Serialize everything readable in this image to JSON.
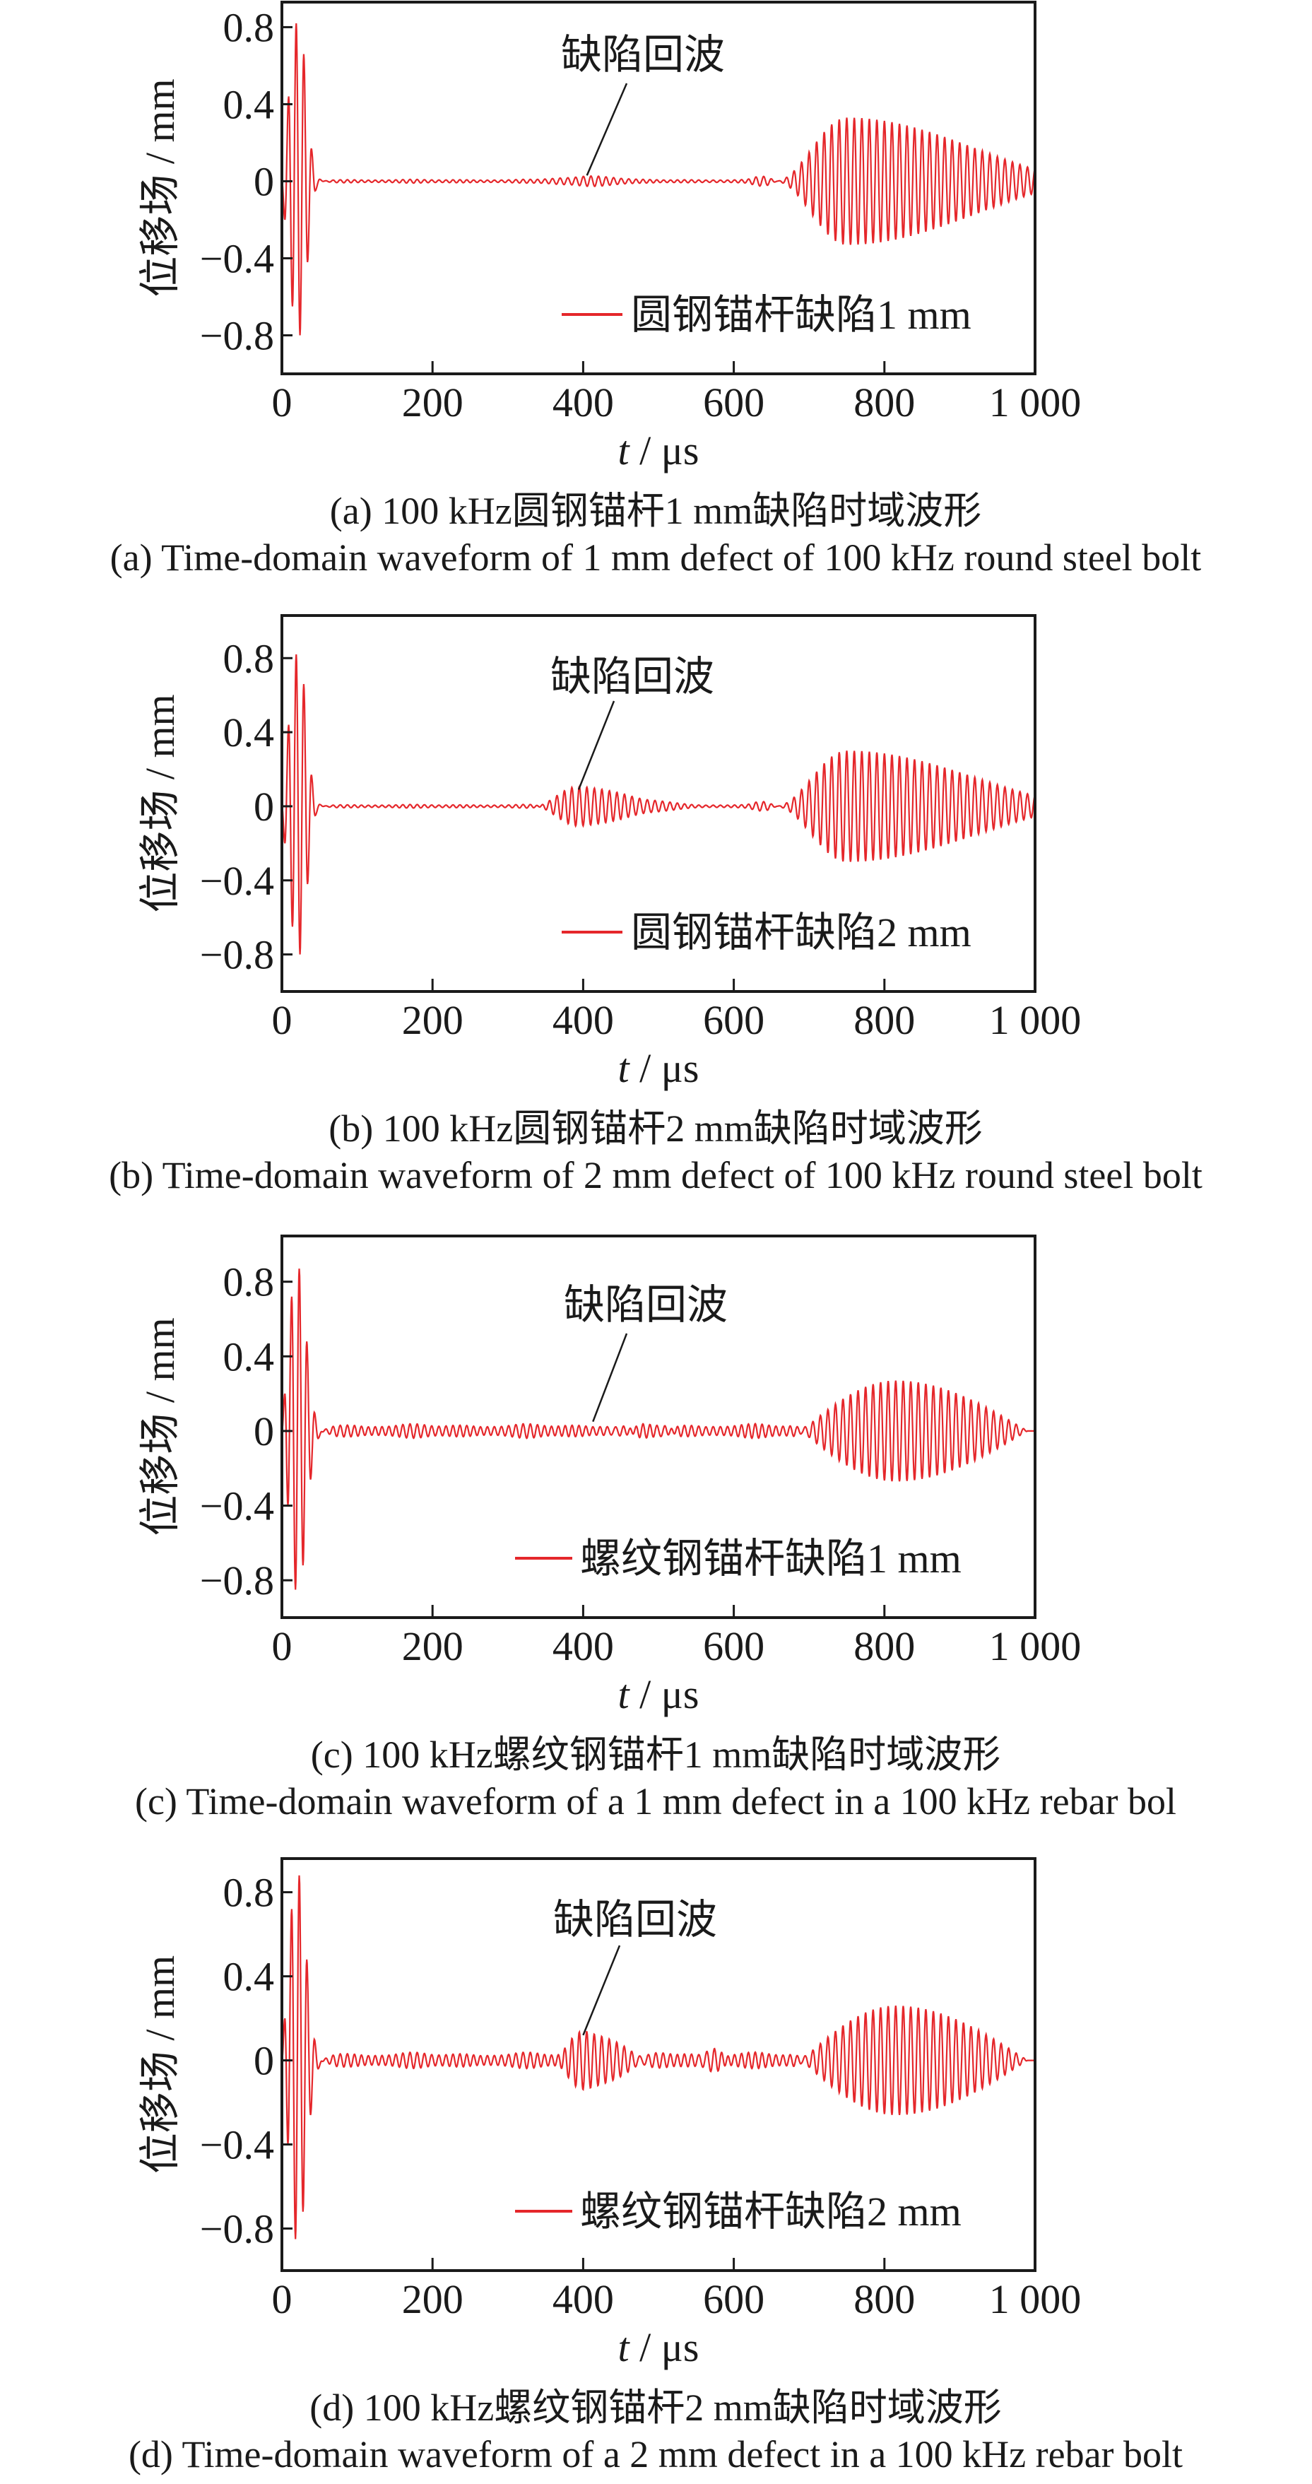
{
  "colors": {
    "series": "#e5272b",
    "axis": "#1a1a1a",
    "annotation": "#1a1a1a"
  },
  "chart_data": [
    {
      "type": "line",
      "panel": "a",
      "caption_zh": "(a)  100 kHz圆钢锚杆1 mm缺陷时域波形",
      "caption_en": "(a)  Time-domain waveform of 1 mm defect of 100 kHz round steel bolt",
      "xlabel_var": "t",
      "xlabel_unit": " / μs",
      "ylabel": "位移场 / mm",
      "xlim": [
        0,
        1000
      ],
      "ylim": [
        -1.0,
        0.93
      ],
      "xticks": [
        0,
        200,
        400,
        600,
        800,
        1000
      ],
      "xtick_labels": [
        "0",
        "200",
        "400",
        "600",
        "800",
        "1 000"
      ],
      "yticks": [
        0.8,
        0.4,
        0,
        -0.4,
        -0.8
      ],
      "ytick_labels": [
        "0.8",
        "0.4",
        "0",
        "−0.4",
        "−0.8"
      ],
      "legend": {
        "label": "圆钢锚杆缺陷1 mm",
        "position": "bottom-right"
      },
      "annotation": {
        "text": "缺陷回波",
        "target_t": 405,
        "target_y": 0.03
      },
      "series": {
        "name": "圆钢锚杆缺陷1 mm",
        "frequency_khz": 100,
        "initial_pulse": [
          [
            0,
            0
          ],
          [
            4,
            -0.2
          ],
          [
            9,
            0.44
          ],
          [
            14,
            -0.65
          ],
          [
            19,
            0.82
          ],
          [
            24,
            -0.8
          ],
          [
            29,
            0.66
          ],
          [
            34,
            -0.42
          ],
          [
            39,
            0.17
          ],
          [
            44,
            -0.05
          ],
          [
            50,
            0.01
          ],
          [
            55,
            0
          ]
        ],
        "noise": {
          "start": 50,
          "end": 650,
          "amp": 0.01
        },
        "packets": [
          {
            "start": 330,
            "peak": 400,
            "end": 480,
            "amp": 0.03,
            "power": 1
          },
          {
            "start": 615,
            "peak": 640,
            "end": 660,
            "amp": 0.025,
            "power": 1
          },
          {
            "start": 655,
            "peak": 750,
            "end": 1100,
            "amp": 0.33,
            "power": 1
          }
        ]
      }
    },
    {
      "type": "line",
      "panel": "b",
      "caption_zh": "(b)  100 kHz圆钢锚杆2 mm缺陷时域波形",
      "caption_en": "(b)  Time-domain waveform of 2 mm defect of 100 kHz round steel bolt",
      "xlabel_var": "t",
      "xlabel_unit": " / μs",
      "ylabel": "位移场 / mm",
      "xlim": [
        0,
        1000
      ],
      "ylim": [
        -1.0,
        1.03
      ],
      "xticks": [
        0,
        200,
        400,
        600,
        800,
        1000
      ],
      "xtick_labels": [
        "0",
        "200",
        "400",
        "600",
        "800",
        "1 000"
      ],
      "yticks": [
        0.8,
        0.4,
        0,
        -0.4,
        -0.8
      ],
      "ytick_labels": [
        "0.8",
        "0.4",
        "0",
        "−0.4",
        "−0.8"
      ],
      "legend": {
        "label": "圆钢锚杆缺陷2 mm",
        "position": "bottom-right"
      },
      "annotation": {
        "text": "缺陷回波",
        "target_t": 394,
        "target_y": 0.09
      },
      "series": {
        "name": "圆钢锚杆缺陷2 mm",
        "frequency_khz": 100,
        "initial_pulse": [
          [
            0,
            0
          ],
          [
            4,
            -0.2
          ],
          [
            9,
            0.44
          ],
          [
            14,
            -0.65
          ],
          [
            19,
            0.82
          ],
          [
            24,
            -0.8
          ],
          [
            29,
            0.66
          ],
          [
            34,
            -0.42
          ],
          [
            39,
            0.17
          ],
          [
            44,
            -0.05
          ],
          [
            50,
            0.01
          ],
          [
            55,
            0
          ]
        ],
        "noise": {
          "start": 50,
          "end": 650,
          "amp": 0.01
        },
        "packets": [
          {
            "start": 330,
            "peak": 395,
            "end": 560,
            "amp": 0.1,
            "power": 1
          },
          {
            "start": 615,
            "peak": 640,
            "end": 660,
            "amp": 0.025,
            "power": 1
          },
          {
            "start": 655,
            "peak": 750,
            "end": 1100,
            "amp": 0.3,
            "power": 1
          }
        ]
      }
    },
    {
      "type": "line",
      "panel": "c",
      "caption_zh": "(c)  100 kHz螺纹钢锚杆1 mm缺陷时域波形",
      "caption_en": "(c)  Time-domain waveform of a 1 mm defect in a 100 kHz rebar bol",
      "xlabel_var": "t",
      "xlabel_unit": " / μs",
      "ylabel": "位移场 / mm",
      "xlim": [
        0,
        1000
      ],
      "ylim": [
        -1.0,
        1.045
      ],
      "xticks": [
        0,
        200,
        400,
        600,
        800,
        1000
      ],
      "xtick_labels": [
        "0",
        "200",
        "400",
        "600",
        "800",
        "1 000"
      ],
      "yticks": [
        0.8,
        0.4,
        0,
        -0.4,
        -0.8
      ],
      "ytick_labels": [
        "0.8",
        "0.4",
        "0",
        "−0.4",
        "−0.8"
      ],
      "legend": {
        "label": "螺纹钢锚杆缺陷1 mm",
        "position": "bottom-right"
      },
      "annotation": {
        "text": "缺陷回波",
        "target_t": 413,
        "target_y": 0.05
      },
      "series": {
        "name": "螺纹钢锚杆缺陷1 mm",
        "frequency_khz": 100,
        "initial_pulse": [
          [
            0,
            0
          ],
          [
            4,
            0.2
          ],
          [
            8,
            -0.4
          ],
          [
            13,
            0.72
          ],
          [
            18,
            -0.85
          ],
          [
            23,
            0.87
          ],
          [
            28,
            -0.72
          ],
          [
            33,
            0.48
          ],
          [
            38,
            -0.26
          ],
          [
            43,
            0.1
          ],
          [
            48,
            -0.04
          ],
          [
            53,
            0
          ]
        ],
        "noise": {
          "start": 50,
          "end": 700,
          "amp": 0.04
        },
        "packets": [
          {
            "start": 430,
            "peak": 455,
            "end": 480,
            "amp": 0.04,
            "power": 1
          },
          {
            "start": 495,
            "peak": 510,
            "end": 530,
            "amp": 0.03,
            "power": 1
          },
          {
            "start": 690,
            "peak": 815,
            "end": 990,
            "amp": 0.27,
            "power": 0.5
          }
        ]
      }
    },
    {
      "type": "line",
      "panel": "d",
      "caption_zh": "(d)  100 kHz螺纹钢锚杆2 mm缺陷时域波形",
      "caption_en": "(d)  Time-domain waveform of a 2 mm defect in a 100 kHz rebar bolt",
      "xlabel_var": "t",
      "xlabel_unit": " / μs",
      "ylabel": "位移场 / mm",
      "xlim": [
        0,
        1000
      ],
      "ylim": [
        -1.0,
        0.96
      ],
      "xticks": [
        0,
        200,
        400,
        600,
        800,
        1000
      ],
      "xtick_labels": [
        "0",
        "200",
        "400",
        "600",
        "800",
        "1 000"
      ],
      "yticks": [
        0.8,
        0.4,
        0,
        -0.4,
        -0.8
      ],
      "ytick_labels": [
        "0.8",
        "0.4",
        "0",
        "−0.4",
        "−0.8"
      ],
      "legend": {
        "label": "螺纹钢锚杆缺陷2 mm",
        "position": "bottom-right"
      },
      "annotation": {
        "text": "缺陷回波",
        "target_t": 400,
        "target_y": 0.12
      },
      "series": {
        "name": "螺纹钢锚杆缺陷2 mm",
        "frequency_khz": 100,
        "initial_pulse": [
          [
            0,
            0
          ],
          [
            4,
            0.2
          ],
          [
            8,
            -0.4
          ],
          [
            13,
            0.72
          ],
          [
            18,
            -0.85
          ],
          [
            23,
            0.88
          ],
          [
            28,
            -0.72
          ],
          [
            33,
            0.48
          ],
          [
            38,
            -0.26
          ],
          [
            43,
            0.1
          ],
          [
            48,
            -0.04
          ],
          [
            53,
            0
          ]
        ],
        "noise": {
          "start": 50,
          "end": 700,
          "amp": 0.04
        },
        "packets": [
          {
            "start": 365,
            "peak": 405,
            "end": 525,
            "amp": 0.12,
            "power": 0.7
          },
          {
            "start": 550,
            "peak": 575,
            "end": 600,
            "amp": 0.05,
            "power": 1
          },
          {
            "start": 690,
            "peak": 815,
            "end": 990,
            "amp": 0.26,
            "power": 0.5
          }
        ]
      }
    }
  ]
}
